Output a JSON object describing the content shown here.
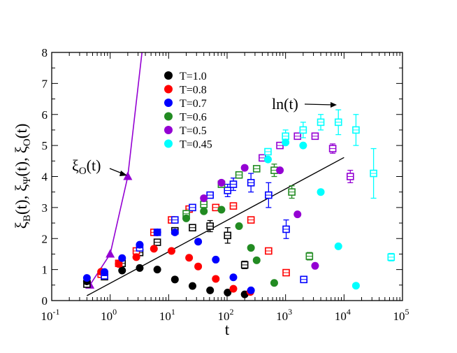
{
  "chart_data": {
    "type": "scatter",
    "title": "",
    "xlabel": "t",
    "ylabel": "ξ_B(t), ξ_Ψ(t), ξ_O(t)",
    "xscale": "log",
    "xlim": [
      0.1,
      100000
    ],
    "ylim": [
      0,
      8
    ],
    "grid": false,
    "legend_position": "upper-left",
    "x_ticks": [
      {
        "value": 0.1,
        "base": "10",
        "exp": "-1"
      },
      {
        "value": 1,
        "base": "10",
        "exp": "0"
      },
      {
        "value": 10,
        "base": "10",
        "exp": "1"
      },
      {
        "value": 100,
        "base": "10",
        "exp": "2"
      },
      {
        "value": 1000,
        "base": "10",
        "exp": "3"
      },
      {
        "value": 10000,
        "base": "10",
        "exp": "4"
      },
      {
        "value": 100000,
        "base": "10",
        "exp": "5"
      }
    ],
    "y_ticks": [
      0,
      1,
      2,
      3,
      4,
      5,
      6,
      7,
      8
    ],
    "series": [
      {
        "name": "T=1.0",
        "color": "#000000",
        "filled": [
          [
            0.4,
            0.62
          ],
          [
            0.8,
            0.85
          ],
          [
            1.6,
            0.97
          ],
          [
            3.2,
            1.05
          ],
          [
            6.4,
            1.0
          ],
          [
            12.8,
            0.68
          ],
          [
            25.6,
            0.47
          ],
          [
            51.2,
            0.33
          ],
          [
            102,
            0.26
          ],
          [
            200,
            0.2
          ]
        ],
        "open": [
          [
            0.4,
            0.53
          ],
          [
            0.8,
            0.77
          ],
          [
            1.6,
            1.2
          ],
          [
            3.2,
            1.55
          ],
          [
            6.4,
            1.88
          ],
          [
            12.8,
            2.25
          ],
          [
            25.6,
            2.35
          ],
          [
            51.2,
            2.4,
            0.18
          ],
          [
            102,
            2.1,
            0.25
          ],
          [
            200,
            1.15,
            0.12
          ]
        ]
      },
      {
        "name": "T=0.8",
        "color": "#ff0000",
        "filled": [
          [
            0.7,
            0.93
          ],
          [
            1.4,
            1.18
          ],
          [
            2.8,
            1.4
          ],
          [
            5.6,
            1.67
          ],
          [
            11.2,
            1.6
          ],
          [
            22.4,
            1.38
          ],
          [
            32,
            1.1
          ],
          [
            64,
            0.7
          ],
          [
            128,
            0.38
          ],
          [
            250,
            0.28
          ]
        ],
        "open": [
          [
            0.7,
            0.85
          ],
          [
            1.4,
            1.2
          ],
          [
            2.8,
            1.6
          ],
          [
            5.6,
            2.2
          ],
          [
            11.2,
            2.6
          ],
          [
            22.4,
            2.95
          ],
          [
            64,
            3.0
          ],
          [
            128,
            3.05
          ],
          [
            256,
            2.6
          ],
          [
            512,
            1.6
          ],
          [
            1024,
            0.9
          ]
        ]
      },
      {
        "name": "T=0.7",
        "color": "#0000ff",
        "filled": [
          [
            0.4,
            0.73
          ],
          [
            0.8,
            0.92
          ],
          [
            1.6,
            1.37
          ],
          [
            3.2,
            1.8
          ],
          [
            6.4,
            2.2
          ],
          [
            12.8,
            2.2
          ],
          [
            32,
            1.9
          ],
          [
            64,
            1.32
          ],
          [
            128,
            0.75
          ],
          [
            256,
            0.33
          ]
        ],
        "open": [
          [
            0.8,
            0.8
          ],
          [
            3.2,
            1.7
          ],
          [
            6.4,
            2.2
          ],
          [
            12.8,
            2.6
          ],
          [
            25.6,
            3.0
          ],
          [
            51.2,
            3.4
          ],
          [
            102,
            3.55,
            0.2
          ],
          [
            128,
            3.75,
            0.2
          ],
          [
            256,
            3.8,
            0.3
          ],
          [
            512,
            3.4,
            0.4
          ],
          [
            1024,
            2.3,
            0.3
          ],
          [
            2048,
            0.68,
            0.1
          ]
        ]
      },
      {
        "name": "T=0.6",
        "color": "#228b22",
        "filled": [
          [
            20,
            2.65
          ],
          [
            40,
            2.88
          ],
          [
            80,
            2.93
          ],
          [
            160,
            2.4
          ],
          [
            256,
            1.7
          ],
          [
            320,
            1.3
          ],
          [
            640,
            0.57
          ]
        ],
        "open": [
          [
            20,
            2.8
          ],
          [
            40,
            3.1
          ],
          [
            80,
            3.75
          ],
          [
            160,
            4.05
          ],
          [
            320,
            4.25
          ],
          [
            640,
            4.2,
            0.2
          ],
          [
            1280,
            3.5,
            0.2
          ],
          [
            2560,
            1.43,
            0.12
          ]
        ]
      },
      {
        "name": "T=0.5",
        "color": "#9400d3",
        "filled": [
          [
            40,
            3.3
          ],
          [
            80,
            3.8
          ],
          [
            200,
            4.28
          ],
          [
            800,
            4.2
          ],
          [
            1600,
            2.78
          ],
          [
            3200,
            1.12
          ]
        ],
        "open": [
          [
            400,
            4.6
          ],
          [
            800,
            5.0
          ],
          [
            1600,
            5.3
          ],
          [
            3200,
            5.3
          ],
          [
            6400,
            4.9,
            0.15
          ],
          [
            12800,
            4.0,
            0.2
          ]
        ]
      },
      {
        "name": "T=0.45",
        "color": "#00ffff",
        "filled": [
          [
            500,
            4.55
          ],
          [
            1000,
            5.1
          ],
          [
            2000,
            5.0
          ],
          [
            4000,
            3.5
          ],
          [
            8000,
            1.75
          ],
          [
            16000,
            0.48
          ]
        ],
        "open": [
          [
            500,
            4.8
          ],
          [
            1000,
            5.3,
            0.2
          ],
          [
            2000,
            5.5,
            0.25
          ],
          [
            4000,
            5.75,
            0.25
          ],
          [
            8000,
            5.75,
            0.4
          ],
          [
            16000,
            5.5,
            0.5
          ],
          [
            32000,
            4.1,
            0.8
          ],
          [
            64000,
            1.4,
            0.12
          ]
        ]
      }
    ],
    "xi_o": {
      "name": "ξ_O(t)",
      "color": "#9400d3",
      "points": [
        [
          0.45,
          0.5
        ],
        [
          1.0,
          1.5
        ],
        [
          2.0,
          4.0
        ]
      ],
      "line_to": [
        3.5,
        8.0
      ]
    },
    "ln_fit": {
      "name": "ln(t)",
      "x_range": [
        0.4,
        10000
      ],
      "slope": 0.44,
      "intercept": 0.56
    },
    "annotations": {
      "ln_label": "ln(t)",
      "xio_label": "ξ_O(t)"
    }
  }
}
